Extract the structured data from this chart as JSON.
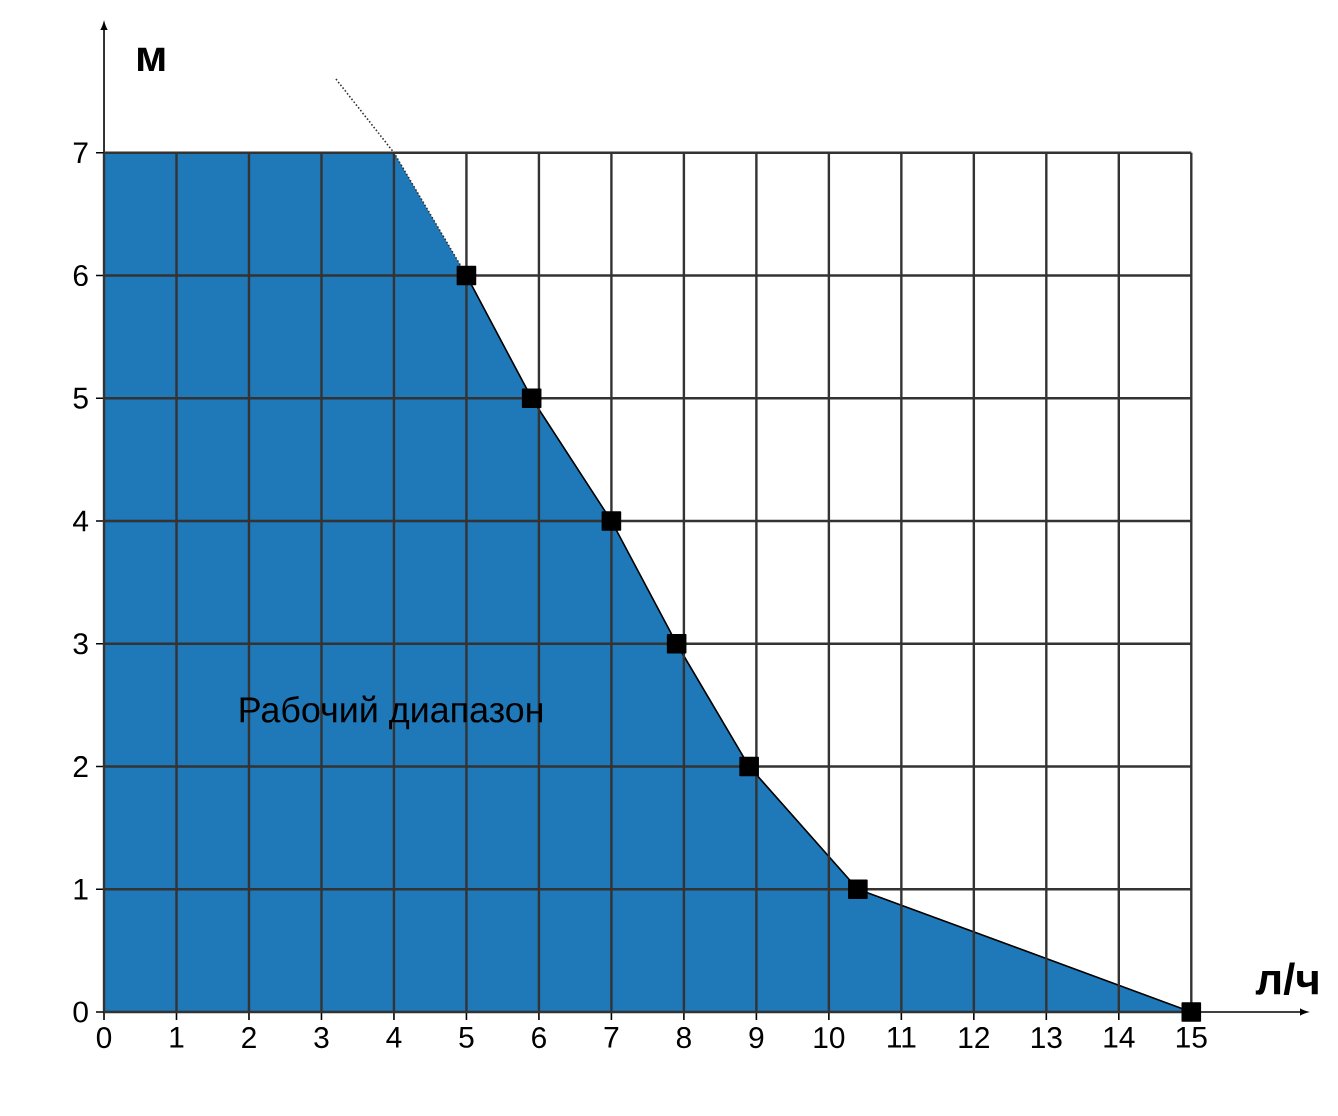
{
  "chart_data": {
    "type": "area",
    "xlabel": "л/ч",
    "ylabel": "м",
    "xlim": [
      0,
      16.5
    ],
    "ylim": [
      0,
      8
    ],
    "xticks": [
      0,
      1,
      2,
      3,
      4,
      5,
      6,
      7,
      8,
      9,
      10,
      11,
      12,
      13,
      14,
      15
    ],
    "yticks": [
      0,
      1,
      2,
      3,
      4,
      5,
      6,
      7
    ],
    "grid": true,
    "annotations": [
      "Рабочий диапазон"
    ],
    "series": [
      {
        "color": "#1f78b8",
        "x": [
          0,
          4,
          5
        ],
        "values": [
          7,
          7,
          6
        ],
        "line_style": "none",
        "marker": "none"
      },
      {
        "color": "#1f78b8",
        "x": [
          5,
          5.9,
          7,
          7.9,
          8.9,
          10.4,
          15
        ],
        "values": [
          6,
          5,
          4,
          3,
          2,
          1,
          0
        ],
        "line_style": "solid",
        "marker": "square"
      },
      {
        "type": "line",
        "color": "#333333",
        "x": [
          3.2,
          4,
          5
        ],
        "values": [
          7.6,
          7,
          6
        ],
        "line_style": "dotted",
        "marker": "none"
      }
    ]
  }
}
